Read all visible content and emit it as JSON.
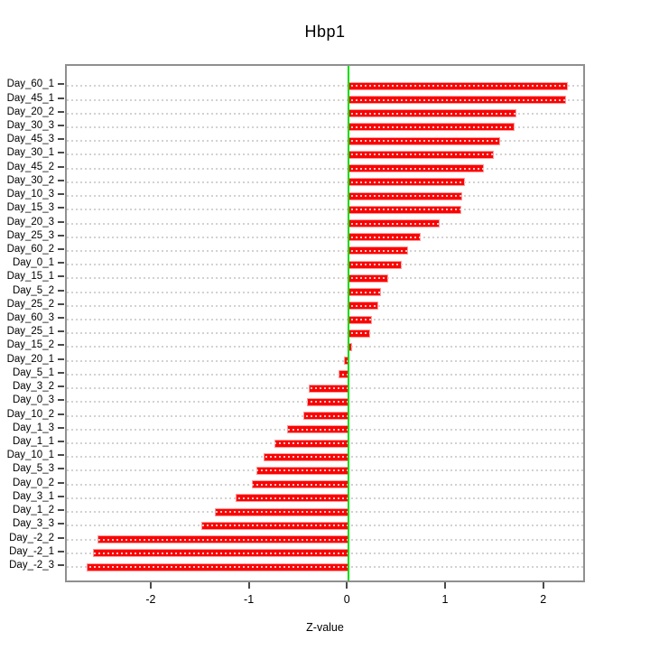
{
  "chart_data": {
    "type": "bar",
    "orientation": "horizontal",
    "title": "Hbp1",
    "xlabel": "Z-value",
    "ylabel": "",
    "categories": [
      "Day_60_1",
      "Day_45_1",
      "Day_20_2",
      "Day_30_3",
      "Day_45_3",
      "Day_30_1",
      "Day_45_2",
      "Day_30_2",
      "Day_10_3",
      "Day_15_3",
      "Day_20_3",
      "Day_25_3",
      "Day_60_2",
      "Day_0_1",
      "Day_15_1",
      "Day_5_2",
      "Day_25_2",
      "Day_60_3",
      "Day_25_1",
      "Day_15_2",
      "Day_20_1",
      "Day_5_1",
      "Day_3_2",
      "Day_0_3",
      "Day_10_2",
      "Day_1_3",
      "Day_1_1",
      "Day_10_1",
      "Day_5_3",
      "Day_0_2",
      "Day_3_1",
      "Day_1_2",
      "Day_3_3",
      "Day_-2_2",
      "Day_-2_1",
      "Day_-2_3"
    ],
    "values": [
      2.23,
      2.21,
      1.71,
      1.69,
      1.54,
      1.48,
      1.38,
      1.18,
      1.16,
      1.15,
      0.93,
      0.73,
      0.6,
      0.54,
      0.4,
      0.33,
      0.3,
      0.24,
      0.22,
      0.03,
      -0.05,
      -0.1,
      -0.41,
      -0.43,
      -0.46,
      -0.63,
      -0.76,
      -0.87,
      -0.94,
      -0.99,
      -1.15,
      -1.36,
      -1.5,
      -2.56,
      -2.61,
      -2.67
    ],
    "x_ticks": [
      -2,
      -1,
      0,
      1,
      2
    ],
    "xlim": [
      -2.873,
      2.426
    ],
    "grid": "dotted horizontal line per category, drawn over bars",
    "legend": "none",
    "colors": {
      "bar_fill": "#fe0000",
      "bar_border": "#ff9a9a",
      "zero_line": "#00dd00",
      "grid_dots": "#d2d2d2",
      "axis_box": "#8f8f8f",
      "tick": "#4a4a4a",
      "text": "#000000"
    }
  }
}
